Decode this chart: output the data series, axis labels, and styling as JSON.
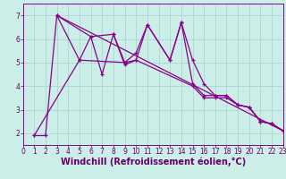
{
  "xlabel": "Windchill (Refroidissement éolien,°C)",
  "background_color": "#cceee8",
  "line_color": "#880088",
  "xlim": [
    0,
    23
  ],
  "ylim": [
    1.5,
    7.5
  ],
  "xticks": [
    0,
    1,
    2,
    3,
    4,
    5,
    6,
    7,
    8,
    9,
    10,
    11,
    12,
    13,
    14,
    15,
    16,
    17,
    18,
    19,
    20,
    21,
    22,
    23
  ],
  "yticks": [
    2,
    3,
    4,
    5,
    6,
    7
  ],
  "series1_x": [
    1,
    2,
    3,
    5,
    6,
    7,
    8,
    9,
    10,
    11,
    13,
    14,
    15,
    16,
    17,
    18,
    19,
    20,
    21,
    22,
    23
  ],
  "series1_y": [
    1.9,
    1.9,
    7.0,
    5.1,
    6.1,
    4.5,
    6.2,
    4.9,
    5.1,
    6.6,
    5.1,
    6.7,
    5.1,
    4.1,
    3.6,
    3.6,
    3.2,
    3.1,
    2.5,
    2.4,
    2.1
  ],
  "series2_x": [
    3,
    23
  ],
  "series2_y": [
    7.0,
    2.1
  ],
  "series3_x": [
    1,
    5,
    9,
    10,
    15,
    16,
    17,
    18,
    19,
    20,
    21,
    22,
    23
  ],
  "series3_y": [
    1.9,
    5.1,
    5.0,
    5.1,
    4.0,
    3.5,
    3.5,
    3.5,
    3.2,
    3.1,
    2.5,
    2.4,
    2.1
  ],
  "series4_x": [
    3,
    6,
    8,
    9,
    10,
    11,
    13,
    14,
    15,
    16,
    17,
    18,
    19,
    20,
    21,
    22,
    23
  ],
  "series4_y": [
    7.0,
    6.1,
    6.2,
    5.0,
    5.4,
    6.6,
    5.1,
    6.7,
    4.1,
    3.6,
    3.6,
    3.6,
    3.2,
    3.1,
    2.5,
    2.4,
    2.1
  ],
  "grid_color": "#aad8d0",
  "tick_fontsize": 5.5,
  "xlabel_fontsize": 7.0,
  "tick_color": "#660066"
}
